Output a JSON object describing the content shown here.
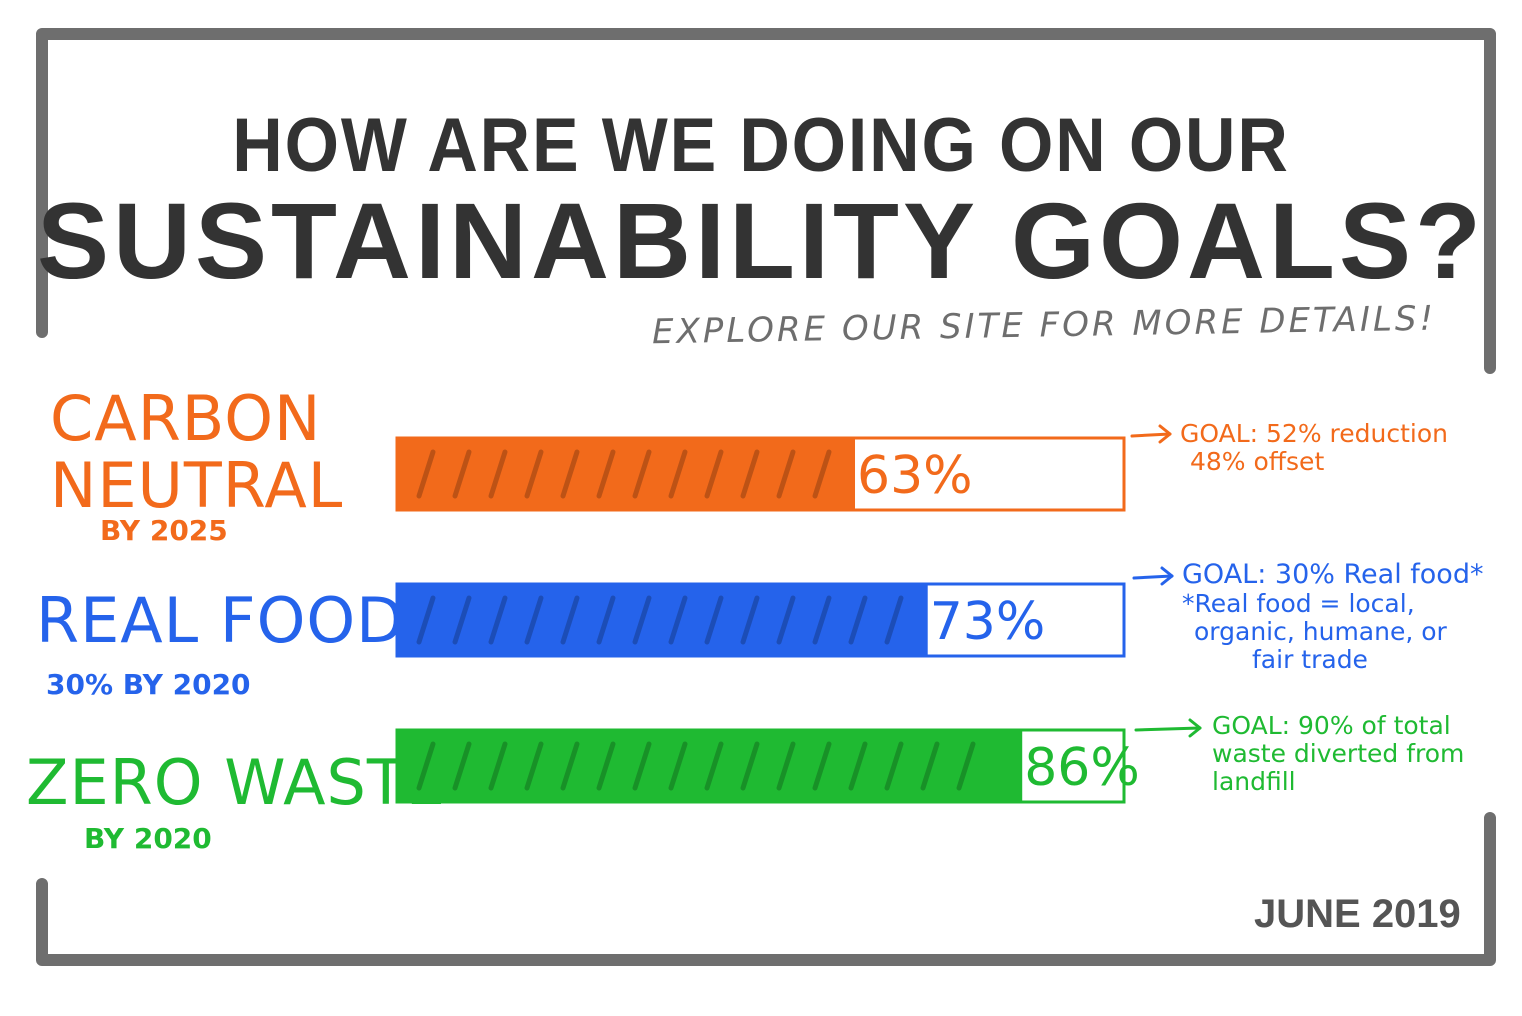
{
  "title_line1": "HOW ARE WE DOING ON OUR",
  "title_line2": "SUSTAINABILITY GOALS?",
  "subtitle": "EXPLORE OUR SITE FOR MORE DETAILS!",
  "date": "JUNE 2019",
  "colors": {
    "frame": "#6e6e6e",
    "title": "#333333",
    "carbon": "#f26a1b",
    "food": "#2563eb",
    "waste": "#1fba32"
  },
  "goals": [
    {
      "label_lines": [
        "CARBON",
        "NEUTRAL"
      ],
      "sub_label": "BY 2025",
      "percent_label": "63%",
      "note_lines": [
        "GOAL: 52% reduction",
        "48% offset"
      ]
    },
    {
      "label_lines": [
        "REAL FOOD"
      ],
      "sub_label": "30% BY 2020",
      "percent_label": "73%",
      "note_lines": [
        "GOAL: 30% Real food*",
        "*Real food = local,",
        "organic, humane, or",
        "fair trade"
      ]
    },
    {
      "label_lines": [
        "ZERO WASTE"
      ],
      "sub_label": "BY 2020",
      "percent_label": "86%",
      "note_lines": [
        "GOAL: 90% of total",
        "waste diverted from",
        "landfill"
      ]
    }
  ],
  "chart_data": {
    "type": "bar",
    "orientation": "horizontal",
    "categories": [
      "CARBON NEUTRAL",
      "REAL FOOD",
      "ZERO WASTE"
    ],
    "values": [
      63,
      73,
      86
    ],
    "xlim": [
      0,
      100
    ],
    "unit": "%",
    "grid": false,
    "legend": "none"
  }
}
